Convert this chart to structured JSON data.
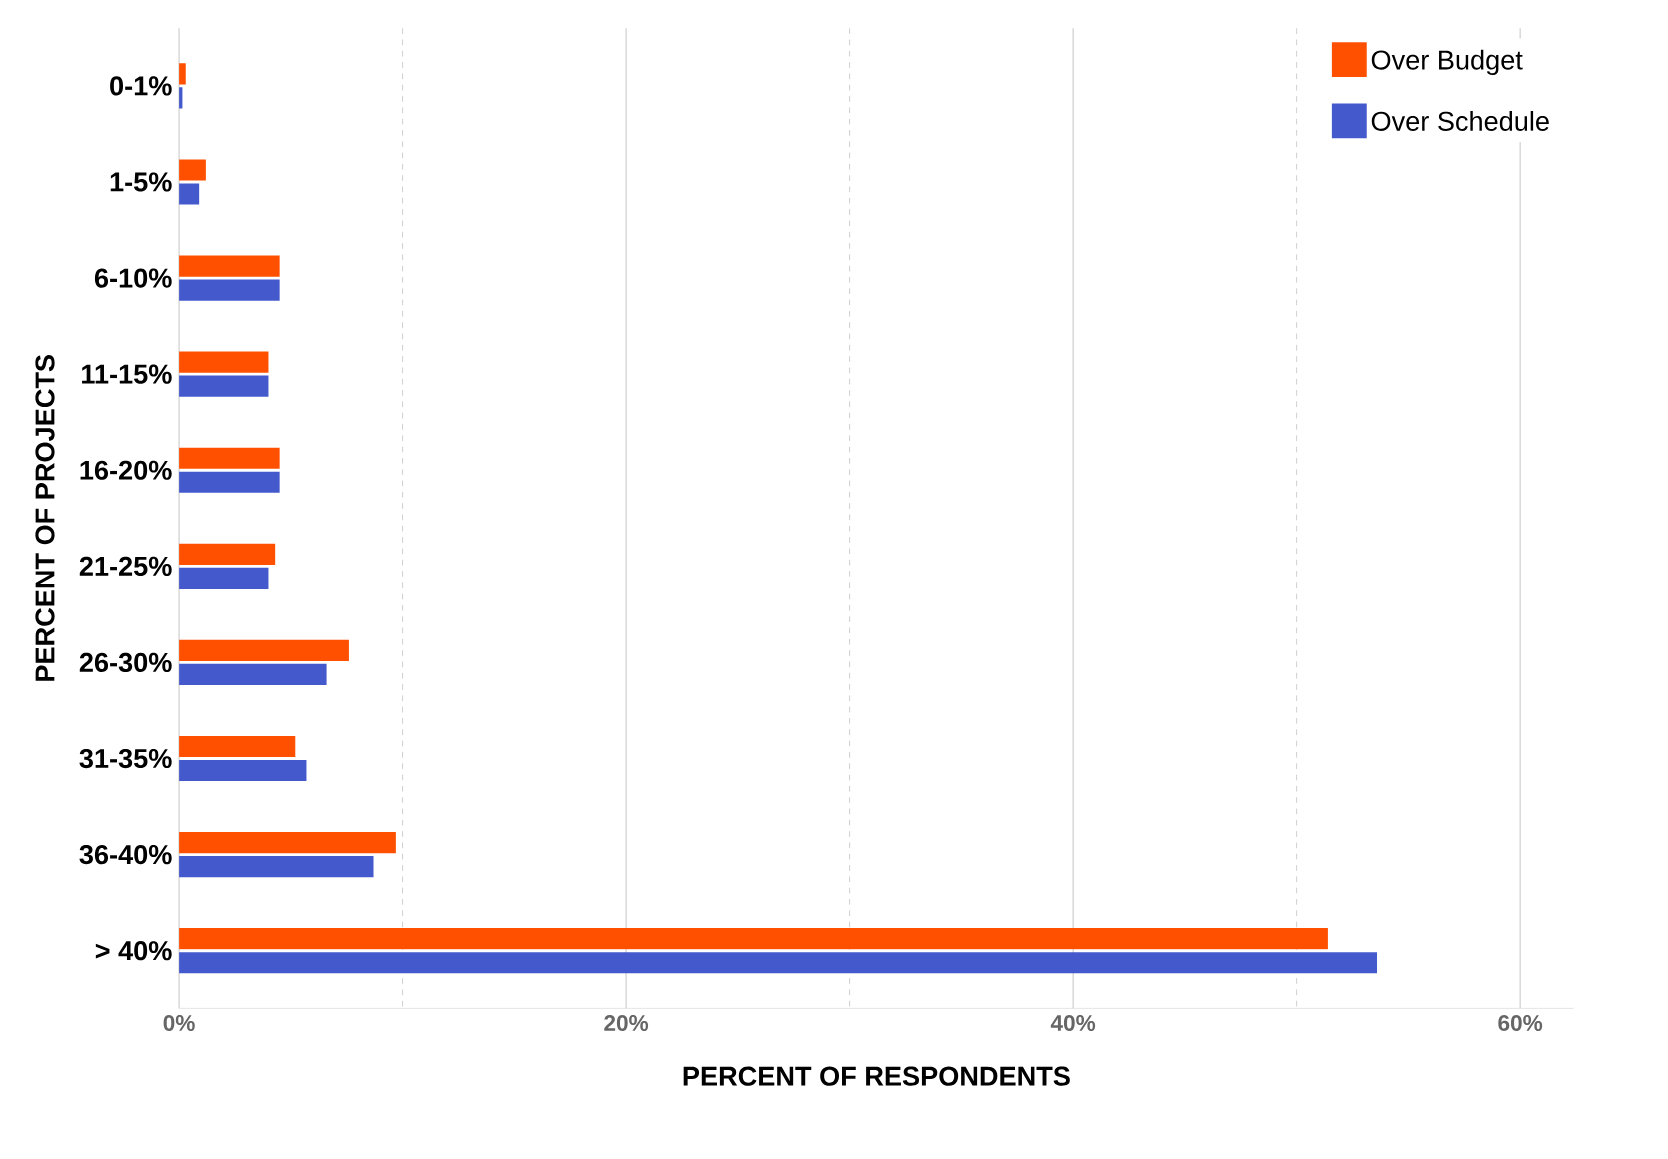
{
  "chart_data": {
    "type": "bar",
    "orientation": "horizontal",
    "xlabel": "PERCENT OF RESPONDENTS",
    "ylabel": "PERCENT OF PROJECTS",
    "categories": [
      "0-1%",
      "1-5%",
      "6-10%",
      "11-15%",
      "16-20%",
      "21-25%",
      "26-30%",
      "31-35%",
      "36-40%",
      "> 40%"
    ],
    "series": [
      {
        "name": "Over Budget",
        "color": "#ff5000",
        "values": [
          0.3,
          1.2,
          4.5,
          4.0,
          4.5,
          4.3,
          7.6,
          5.2,
          9.7,
          51.4
        ]
      },
      {
        "name": "Over Schedule",
        "color": "#4459cc",
        "values": [
          0.15,
          0.9,
          4.5,
          4.0,
          4.5,
          4.0,
          6.6,
          5.7,
          8.7,
          53.6
        ]
      }
    ],
    "xlim": [
      0,
      62.4
    ],
    "xticks": [
      {
        "value": 0,
        "label": "0%"
      },
      {
        "value": 10,
        "label": null
      },
      {
        "value": 20,
        "label": "20%"
      },
      {
        "value": 30,
        "label": null
      },
      {
        "value": 40,
        "label": "40%"
      },
      {
        "value": 50,
        "label": null
      },
      {
        "value": 60,
        "label": "60%"
      }
    ],
    "grid": "x",
    "legend": "top right"
  }
}
